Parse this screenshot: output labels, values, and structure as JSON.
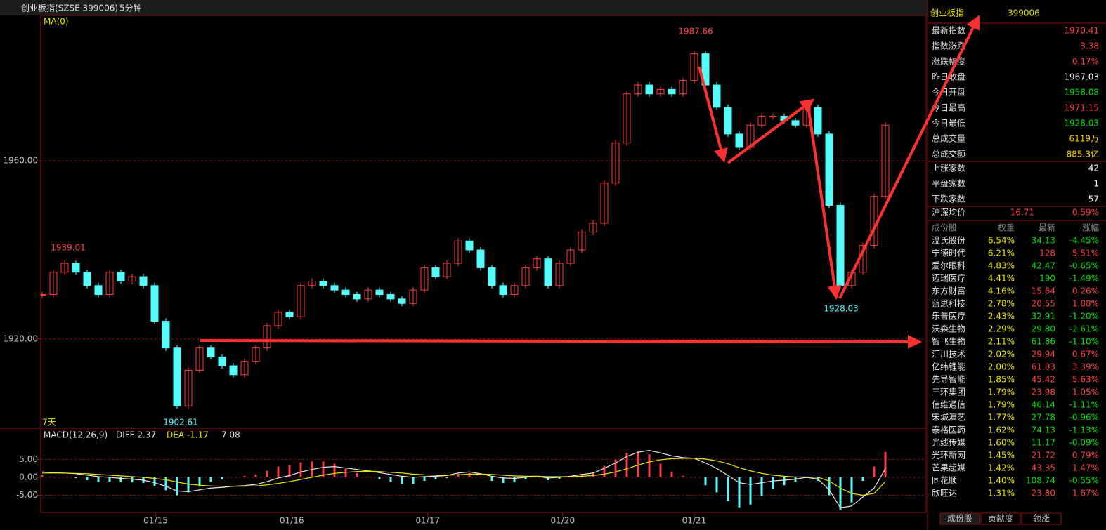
{
  "header": {
    "title": "创业板指(SZSE 399006)",
    "period": "5分钟"
  },
  "chart_data": [
    {
      "type": "candle",
      "indicator": "MA(0)",
      "range_label": "7天",
      "annotations": [
        "1987.66",
        "1939.01",
        "1902.61",
        "1928.03"
      ],
      "x": [
        0,
        1,
        2,
        3,
        4,
        5,
        6,
        7,
        8,
        9,
        10,
        11,
        12,
        13,
        14,
        15,
        16,
        17,
        18,
        19,
        20,
        21,
        22,
        23,
        24,
        25,
        26,
        27,
        28,
        29,
        30,
        31,
        32,
        33,
        34,
        35,
        36,
        37,
        38,
        39,
        40,
        41,
        42,
        43,
        44,
        45,
        46,
        47,
        48,
        49,
        50,
        51,
        52,
        53,
        54,
        55,
        56,
        57,
        58,
        59,
        60,
        61,
        62,
        63,
        64,
        65,
        66,
        67,
        68,
        69,
        70,
        71,
        72,
        73,
        74,
        75
      ],
      "values": [
        1930,
        1935,
        1937,
        1935,
        1932,
        1930,
        1935,
        1933,
        1934,
        1932,
        1924,
        1918,
        1905,
        1913,
        1918,
        1916,
        1914,
        1912,
        1915,
        1918,
        1923,
        1926,
        1925,
        1932,
        1933,
        1932,
        1931,
        1930,
        1929,
        1931,
        1930,
        1929,
        1928,
        1931,
        1936,
        1934,
        1937,
        1942,
        1940,
        1936,
        1932,
        1930,
        1932,
        1936,
        1938,
        1932,
        1937,
        1940,
        1944,
        1946,
        1955,
        1964,
        1975,
        1977,
        1975,
        1976,
        1975,
        1978,
        1984,
        1977,
        1972,
        1966,
        1963,
        1968,
        1970,
        1970,
        1969,
        1968,
        1972,
        1966,
        1950,
        1932,
        1935,
        1941,
        1952,
        1968
      ],
      "up_color": "#ff3c3c",
      "down_color": "#54fcfc",
      "xlim": [
        -0.125,
        78.625
      ],
      "ylim": [
        1900,
        1992.6
      ],
      "xticks": [
        {
          "value": 10.1,
          "label": "01/15"
        },
        {
          "value": 22.2,
          "label": "01/16"
        },
        {
          "value": 34.3,
          "label": "01/17"
        },
        {
          "value": 46.3,
          "label": "01/20"
        },
        {
          "value": 58.0,
          "label": "01/21"
        }
      ],
      "yticks": [
        {
          "value": 1920,
          "label": "1920.00"
        },
        {
          "value": 1960,
          "label": "1960.00"
        }
      ],
      "grid": true
    },
    {
      "type": "macd",
      "title": "MACD(12,26,9)",
      "diff_label": "DIFF 2.37",
      "dea_label": "DEA -1.17",
      "macd_label": "7.08",
      "x": [
        0,
        1,
        2,
        3,
        4,
        5,
        6,
        7,
        8,
        9,
        10,
        11,
        12,
        13,
        14,
        15,
        16,
        17,
        18,
        19,
        20,
        21,
        22,
        23,
        24,
        25,
        26,
        27,
        28,
        29,
        30,
        31,
        32,
        33,
        34,
        35,
        36,
        37,
        38,
        39,
        40,
        41,
        42,
        43,
        44,
        45,
        46,
        47,
        48,
        49,
        50,
        51,
        52,
        53,
        54,
        55,
        56,
        57,
        58,
        59,
        60,
        61,
        62,
        63,
        64,
        65,
        66,
        67,
        68,
        69,
        70,
        71,
        72,
        73,
        74,
        75
      ],
      "series": [
        {
          "name": "DIFF",
          "color": "#e8e8e8",
          "values": [
            1.5,
            1.3,
            1.2,
            1.0,
            0.6,
            0.2,
            0,
            -0.3,
            -0.5,
            -0.8,
            -1.5,
            -2.5,
            -3.8,
            -4.0,
            -3.5,
            -3.0,
            -2.8,
            -2.5,
            -2.3,
            -2,
            -1.2,
            -0.2,
            0.5,
            1.5,
            2.2,
            2.8,
            3,
            2.6,
            2.2,
            1.8,
            1.3,
            0.8,
            0.3,
            0,
            0.2,
            0.3,
            0.5,
            1.2,
            1.5,
            1.0,
            0.3,
            -0.2,
            -0.3,
            0,
            0.3,
            -0.2,
            0,
            0.3,
            0.8,
            1.2,
            2.5,
            4,
            5.8,
            7,
            7.5,
            6.8,
            6,
            5.5,
            5.3,
            4,
            2.5,
            0.5,
            -1.5,
            -2,
            -1.5,
            -1,
            -0.8,
            -0.5,
            0,
            -0.5,
            -3.5,
            -8.5,
            -8,
            -5.5,
            -3,
            2.37
          ]
        },
        {
          "name": "DEA",
          "color": "#e8e800",
          "values": [
            1.2,
            1.2,
            1.2,
            1.1,
            1.0,
            0.8,
            0.6,
            0.4,
            0.2,
            0,
            -0.3,
            -0.7,
            -1.3,
            -1.9,
            -2.2,
            -2.4,
            -2.5,
            -2.5,
            -2.5,
            -2.4,
            -2.1,
            -1.7,
            -1.2,
            -0.6,
            0,
            0.6,
            1.1,
            1.4,
            1.6,
            1.7,
            1.6,
            1.4,
            1.2,
            0.9,
            0.7,
            0.6,
            0.6,
            0.7,
            0.9,
            0.9,
            0.8,
            0.6,
            0.4,
            0.3,
            0.3,
            0.2,
            0.2,
            0.2,
            0.3,
            0.5,
            0.9,
            1.5,
            2.4,
            3.4,
            4.3,
            4.9,
            5.2,
            5.3,
            5.3,
            5.1,
            4.6,
            3.8,
            2.7,
            1.8,
            1.1,
            0.6,
            0.3,
            0.1,
            0.1,
            0,
            -1,
            -3,
            -4.5,
            -5,
            -4.5,
            -1.17
          ]
        }
      ],
      "histogram": [
        0.6,
        0.2,
        0,
        -0.2,
        -0.8,
        -1.2,
        -1.2,
        -1.4,
        -1.4,
        -1.6,
        -2.4,
        -3.6,
        -5.0,
        -4.2,
        -2.6,
        -1.2,
        -0.6,
        0,
        0.4,
        0.8,
        1.8,
        3.0,
        3.4,
        4.2,
        4.4,
        4.4,
        3.8,
        2.4,
        1.2,
        0.2,
        -0.6,
        -1.2,
        -1.8,
        -1.8,
        -1.0,
        -0.6,
        -0.2,
        1.0,
        1.2,
        0.2,
        -1.0,
        -1.6,
        -1.4,
        -0.6,
        0,
        -0.8,
        -0.4,
        0.2,
        1.0,
        1.4,
        3.2,
        5.0,
        6.8,
        7.2,
        6.4,
        3.8,
        1.6,
        0.4,
        0,
        -2.2,
        -4.2,
        -6.6,
        -8.4,
        -7.6,
        -5.2,
        -3.2,
        -2.2,
        -1.2,
        -0.2,
        -1.0,
        -5.0,
        -9.0,
        -7.0,
        -1.0,
        3.0,
        7.08
      ],
      "up_color": "#ff3c3c",
      "down_color": "#54fcfc",
      "xlim": [
        -0.125,
        78.625
      ],
      "ylim": [
        -9.8,
        13.3
      ],
      "yticks": [
        {
          "value": -5,
          "label": "-5.00"
        },
        {
          "value": 0,
          "label": "0.00"
        },
        {
          "value": 5,
          "label": "5.00"
        }
      ],
      "grid": true
    }
  ],
  "quote": {
    "name": "创业板指",
    "code": "399006",
    "rows": [
      {
        "label": "最新指数",
        "value": "1970.41",
        "color": "#ff4040"
      },
      {
        "label": "指数涨跌",
        "value": "3.38",
        "color": "#ff4040"
      },
      {
        "label": "涨跌幅度",
        "value": "0.17%",
        "color": "#ff4040"
      },
      {
        "label": "昨日收盘",
        "value": "1967.03",
        "color": "#ffffff"
      },
      {
        "label": "今日开盘",
        "value": "1958.08",
        "color": "#00e000"
      },
      {
        "label": "今日最高",
        "value": "1971.15",
        "color": "#ff4040"
      },
      {
        "label": "今日最低",
        "value": "1928.03",
        "color": "#00e000"
      },
      {
        "label": "总成交量",
        "value": "6119万",
        "color": "#ffcc00"
      },
      {
        "label": "总成交额",
        "value": "885.3亿",
        "color": "#ffcc00"
      }
    ],
    "breadth": [
      {
        "label": "上涨家数",
        "value": "42"
      },
      {
        "label": "平盘家数",
        "value": "1"
      },
      {
        "label": "下跌家数",
        "value": "57"
      }
    ],
    "avg": {
      "label": "沪深均价",
      "price": "16.71",
      "change": "0.59%"
    }
  },
  "constituents": {
    "headers": [
      "成份股",
      "权重",
      "最新",
      "涨幅"
    ],
    "rows": [
      [
        "温氏股份",
        "6.54%",
        "34.13",
        "-4.45%"
      ],
      [
        "宁德时代",
        "6.21%",
        "128",
        "5.51%"
      ],
      [
        "爱尔眼科",
        "4.83%",
        "42.47",
        "-0.65%"
      ],
      [
        "迈瑞医疗",
        "4.41%",
        "190",
        "-1.49%"
      ],
      [
        "东方财富",
        "4.16%",
        "15.64",
        "0.26%"
      ],
      [
        "蓝思科技",
        "2.78%",
        "20.55",
        "1.88%"
      ],
      [
        "乐普医疗",
        "2.43%",
        "32.91",
        "-1.20%"
      ],
      [
        "沃森生物",
        "2.29%",
        "29.80",
        "-2.61%"
      ],
      [
        "智飞生物",
        "2.11%",
        "61.86",
        "-1.10%"
      ],
      [
        "汇川技术",
        "2.02%",
        "29.94",
        "0.67%"
      ],
      [
        "亿纬锂能",
        "2.00%",
        "61.83",
        "3.39%"
      ],
      [
        "先导智能",
        "1.85%",
        "45.42",
        "5.63%"
      ],
      [
        "三环集团",
        "1.79%",
        "23.98",
        "1.05%"
      ],
      [
        "信维通信",
        "1.79%",
        "46.14",
        "-1.11%"
      ],
      [
        "宋城演艺",
        "1.77%",
        "27.78",
        "-0.96%"
      ],
      [
        "泰格医药",
        "1.62%",
        "74.13",
        "-1.13%"
      ],
      [
        "光线传媒",
        "1.60%",
        "11.17",
        "-0.09%"
      ],
      [
        "光环新网",
        "1.45%",
        "21.72",
        "0.79%"
      ],
      [
        "芒果超媒",
        "1.42%",
        "43.35",
        "1.47%"
      ],
      [
        "同花顺",
        "1.40%",
        "108.74",
        "-0.55%"
      ],
      [
        "欣旺达",
        "1.31%",
        "23.80",
        "1.67%"
      ]
    ]
  },
  "tabs": [
    "成份股",
    "贡献度",
    "领涨"
  ]
}
